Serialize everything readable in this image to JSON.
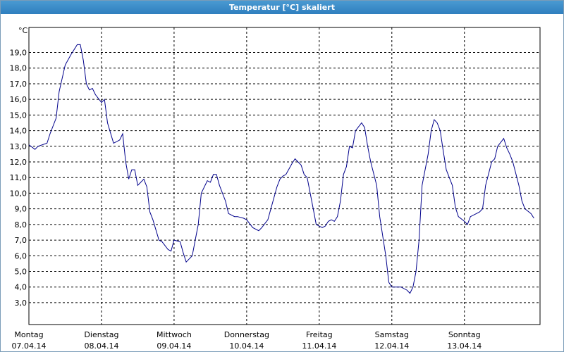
{
  "window_title": "Temperatur [°C] skaliert",
  "chart_data": {
    "type": "line",
    "y_label": "°C",
    "xlim": [
      0,
      169
    ],
    "ylim": [
      1.6,
      20.6
    ],
    "xticks": [
      {
        "value": 0,
        "label": "Montag",
        "sublabel": "07.04.14"
      },
      {
        "value": 24,
        "label": "Dienstag",
        "sublabel": "08.04.14"
      },
      {
        "value": 48,
        "label": "Mittwoch",
        "sublabel": "09.04.14"
      },
      {
        "value": 72,
        "label": "Donnerstag",
        "sublabel": "10.04.14"
      },
      {
        "value": 96,
        "label": "Freitag",
        "sublabel": "11.04.14"
      },
      {
        "value": 120,
        "label": "Samstag",
        "sublabel": "12.04.14"
      },
      {
        "value": 144,
        "label": "Sonntag",
        "sublabel": "13.04.14"
      }
    ],
    "yticks": [
      {
        "value": 3,
        "label": "3,0"
      },
      {
        "value": 4,
        "label": "4,0"
      },
      {
        "value": 5,
        "label": "5,0"
      },
      {
        "value": 6,
        "label": "6,0"
      },
      {
        "value": 7,
        "label": "7,0"
      },
      {
        "value": 8,
        "label": "8,0"
      },
      {
        "value": 9,
        "label": "9,0"
      },
      {
        "value": 10,
        "label": "10,0"
      },
      {
        "value": 11,
        "label": "11,0"
      },
      {
        "value": 12,
        "label": "12,0"
      },
      {
        "value": 13,
        "label": "13,0"
      },
      {
        "value": 14,
        "label": "14,0"
      },
      {
        "value": 15,
        "label": "15,0"
      },
      {
        "value": 16,
        "label": "16,0"
      },
      {
        "value": 17,
        "label": "17,0"
      },
      {
        "value": 18,
        "label": "18,0"
      },
      {
        "value": 19,
        "label": "19,0"
      }
    ],
    "grid": true,
    "x": [
      0,
      2,
      3,
      6,
      7,
      9,
      10,
      12,
      14,
      16,
      17,
      18,
      19,
      20,
      21,
      22,
      24,
      25,
      26,
      28,
      30,
      31,
      32,
      33,
      34,
      35,
      36,
      38,
      39,
      40,
      41,
      43,
      44,
      46,
      47,
      48,
      50,
      51,
      52,
      54,
      55,
      56,
      57,
      59,
      60,
      61,
      62,
      63,
      65,
      66,
      68,
      69,
      71,
      72,
      74,
      76,
      77,
      79,
      80,
      82,
      83,
      84,
      85,
      87,
      88,
      90,
      91,
      92,
      94,
      95,
      97,
      98,
      99,
      100,
      101,
      102,
      103,
      104,
      105,
      106,
      107,
      108,
      110,
      111,
      112,
      113,
      115,
      116,
      118,
      119,
      120,
      122,
      123,
      125,
      126,
      127,
      128,
      129,
      130,
      132,
      133,
      134,
      135,
      136,
      137,
      138,
      140,
      141,
      142,
      144,
      145,
      146,
      148,
      149,
      150,
      151,
      153,
      154,
      155,
      157,
      158,
      159,
      160,
      162,
      163,
      164,
      166,
      167
    ],
    "series": [
      {
        "color": "#00008b",
        "values": [
          13.1,
          12.8,
          13.0,
          13.2,
          13.8,
          14.8,
          16.5,
          18.2,
          18.9,
          19.5,
          19.5,
          18.5,
          17.0,
          16.6,
          16.7,
          16.3,
          15.8,
          16.0,
          14.5,
          13.2,
          13.4,
          13.8,
          12.0,
          10.9,
          11.5,
          11.5,
          10.5,
          10.9,
          10.4,
          8.8,
          8.3,
          7.0,
          6.9,
          6.4,
          6.3,
          7.0,
          6.9,
          6.2,
          5.6,
          6.0,
          7.0,
          8.0,
          10.0,
          10.8,
          10.7,
          11.2,
          11.2,
          10.5,
          9.5,
          8.7,
          8.5,
          8.5,
          8.4,
          8.3,
          7.8,
          7.6,
          7.8,
          8.3,
          9.0,
          10.4,
          10.9,
          11.1,
          11.2,
          11.9,
          12.2,
          11.8,
          11.2,
          11.0,
          9.0,
          8.0,
          7.8,
          7.9,
          8.2,
          8.3,
          8.2,
          8.5,
          9.5,
          11.2,
          11.7,
          13.0,
          12.9,
          14.0,
          14.5,
          14.2,
          13.0,
          12.0,
          10.5,
          8.5,
          6.0,
          4.3,
          4.0,
          4.0,
          4.0,
          3.8,
          3.6,
          4.0,
          5.0,
          7.0,
          10.5,
          12.5,
          14.0,
          14.7,
          14.5,
          14.0,
          12.7,
          11.5,
          10.5,
          9.1,
          8.5,
          8.2,
          8.0,
          8.5,
          8.7,
          8.8,
          9.0,
          10.5,
          12.0,
          12.2,
          13.0,
          13.5,
          12.9,
          12.5,
          12.0,
          10.5,
          9.5,
          9.0,
          8.7,
          8.4
        ]
      }
    ]
  }
}
